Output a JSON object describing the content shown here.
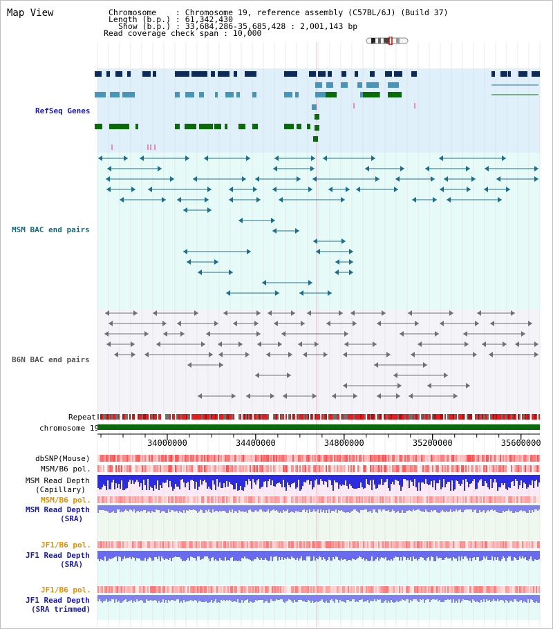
{
  "page_title": "Map View",
  "header": {
    "chromosome": "Chromosome    : Chromosome 19, reference assembly (C57BL/6J) (Build 37)",
    "length": "Length (b.p.) : 61,342,430",
    "show": "Show (b.p.) : 33,684,286-35,685,428 : 2,001,143 bp",
    "coverage": "Read coverage check span : 10,000"
  },
  "tracks": {
    "refseq": "RefSeq Genes",
    "msm_bac": "MSM BAC end pairs",
    "b6n_bac": "B6N BAC end pairs",
    "repeat": "Repeat",
    "chromosome": "chromosome 19",
    "dbsnp": "dbSNP(Mouse)",
    "msm_b6_pol": "MSM/B6 pol.",
    "msm_read_depth_1": "MSM Read Depth",
    "msm_read_depth_1b": "(Capillary)",
    "msm_b6_pol_2": "MSM/B6 pol.",
    "msm_read_depth_2": "MSM Read Depth",
    "msm_read_depth_2b": "(SRA)",
    "jf1_b6_pol_1": "JF1/B6 pol.",
    "jf1_read_depth_1": "JF1 Read Depth",
    "jf1_read_depth_1b": "(SRA)",
    "jf1_b6_pol_2": "JF1/B6 pol.",
    "jf1_read_depth_2": "JF1 Read Depth",
    "jf1_read_depth_2b": "(SRA trimmed)"
  },
  "axis": {
    "ticks": [
      "34000000",
      "34400000",
      "34800000",
      "35200000",
      "35600000"
    ],
    "tick_values": [
      34000000,
      34400000,
      34800000,
      35200000,
      35600000
    ],
    "start": 33684286,
    "end": 35685428
  },
  "colors": {
    "refseq_bg": "#dff0fa",
    "msm_bg": "#e6faf8",
    "b6n_bg": "#f4f4f8",
    "gene_dark": "#0c2a5c",
    "gene_mid": "#4a94b8",
    "gene_green": "#0a6a0a",
    "bac_msm": "#1d6e8a",
    "bac_b6n": "#707070",
    "chrom_bar": "#0b6a0b",
    "repeat_red": "#e02020",
    "depth_blue": "#2b2be0",
    "depth_light": "#8080f0",
    "label_blue": "#1a1aaa",
    "label_teal": "#1a6a7a",
    "label_orange": "#e09000"
  }
}
